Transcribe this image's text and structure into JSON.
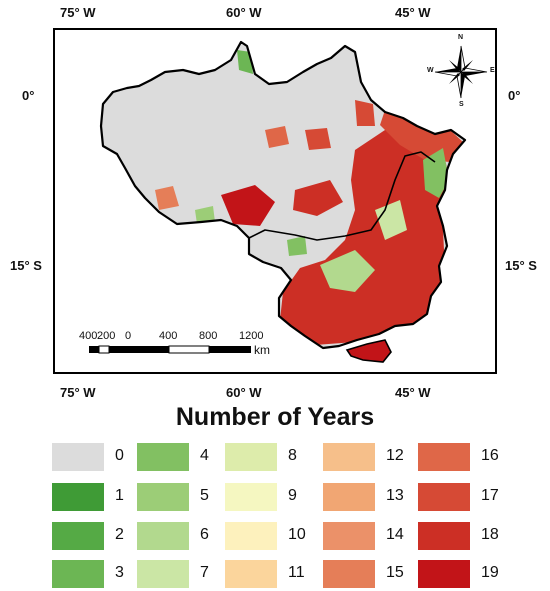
{
  "coordinates": {
    "top": [
      "75° W",
      "60° W",
      "45° W"
    ],
    "bottom": [
      "75° W",
      "60° W",
      "45° W"
    ],
    "left": [
      "0°",
      "15° S"
    ],
    "right": [
      "0°",
      "15° S"
    ]
  },
  "compass": {
    "n": "N",
    "s": "S",
    "e": "E",
    "w": "W"
  },
  "scale_bar": {
    "labels": [
      "400",
      "200",
      "0",
      "400",
      "800",
      "1200"
    ],
    "unit": "km"
  },
  "legend": {
    "title": "Number of Years",
    "items": [
      {
        "label": "0",
        "color": "#dcdcdc"
      },
      {
        "label": "1",
        "color": "#3f9b36"
      },
      {
        "label": "2",
        "color": "#55aa45"
      },
      {
        "label": "3",
        "color": "#6cb654"
      },
      {
        "label": "4",
        "color": "#82c062"
      },
      {
        "label": "5",
        "color": "#9ccd77"
      },
      {
        "label": "6",
        "color": "#b2d98e"
      },
      {
        "label": "7",
        "color": "#cbe6a5"
      },
      {
        "label": "8",
        "color": "#ddecab"
      },
      {
        "label": "9",
        "color": "#f5f7c1"
      },
      {
        "label": "10",
        "color": "#fdf1bd"
      },
      {
        "label": "11",
        "color": "#fbd59c"
      },
      {
        "label": "12",
        "color": "#f6bf8a"
      },
      {
        "label": "13",
        "color": "#f1a673"
      },
      {
        "label": "14",
        "color": "#eb9169"
      },
      {
        "label": "15",
        "color": "#e57e58"
      },
      {
        "label": "16",
        "color": "#df6748"
      },
      {
        "label": "17",
        "color": "#d64a35"
      },
      {
        "label": "18",
        "color": "#cc2f25"
      },
      {
        "label": "19",
        "color": "#c21418"
      }
    ]
  }
}
